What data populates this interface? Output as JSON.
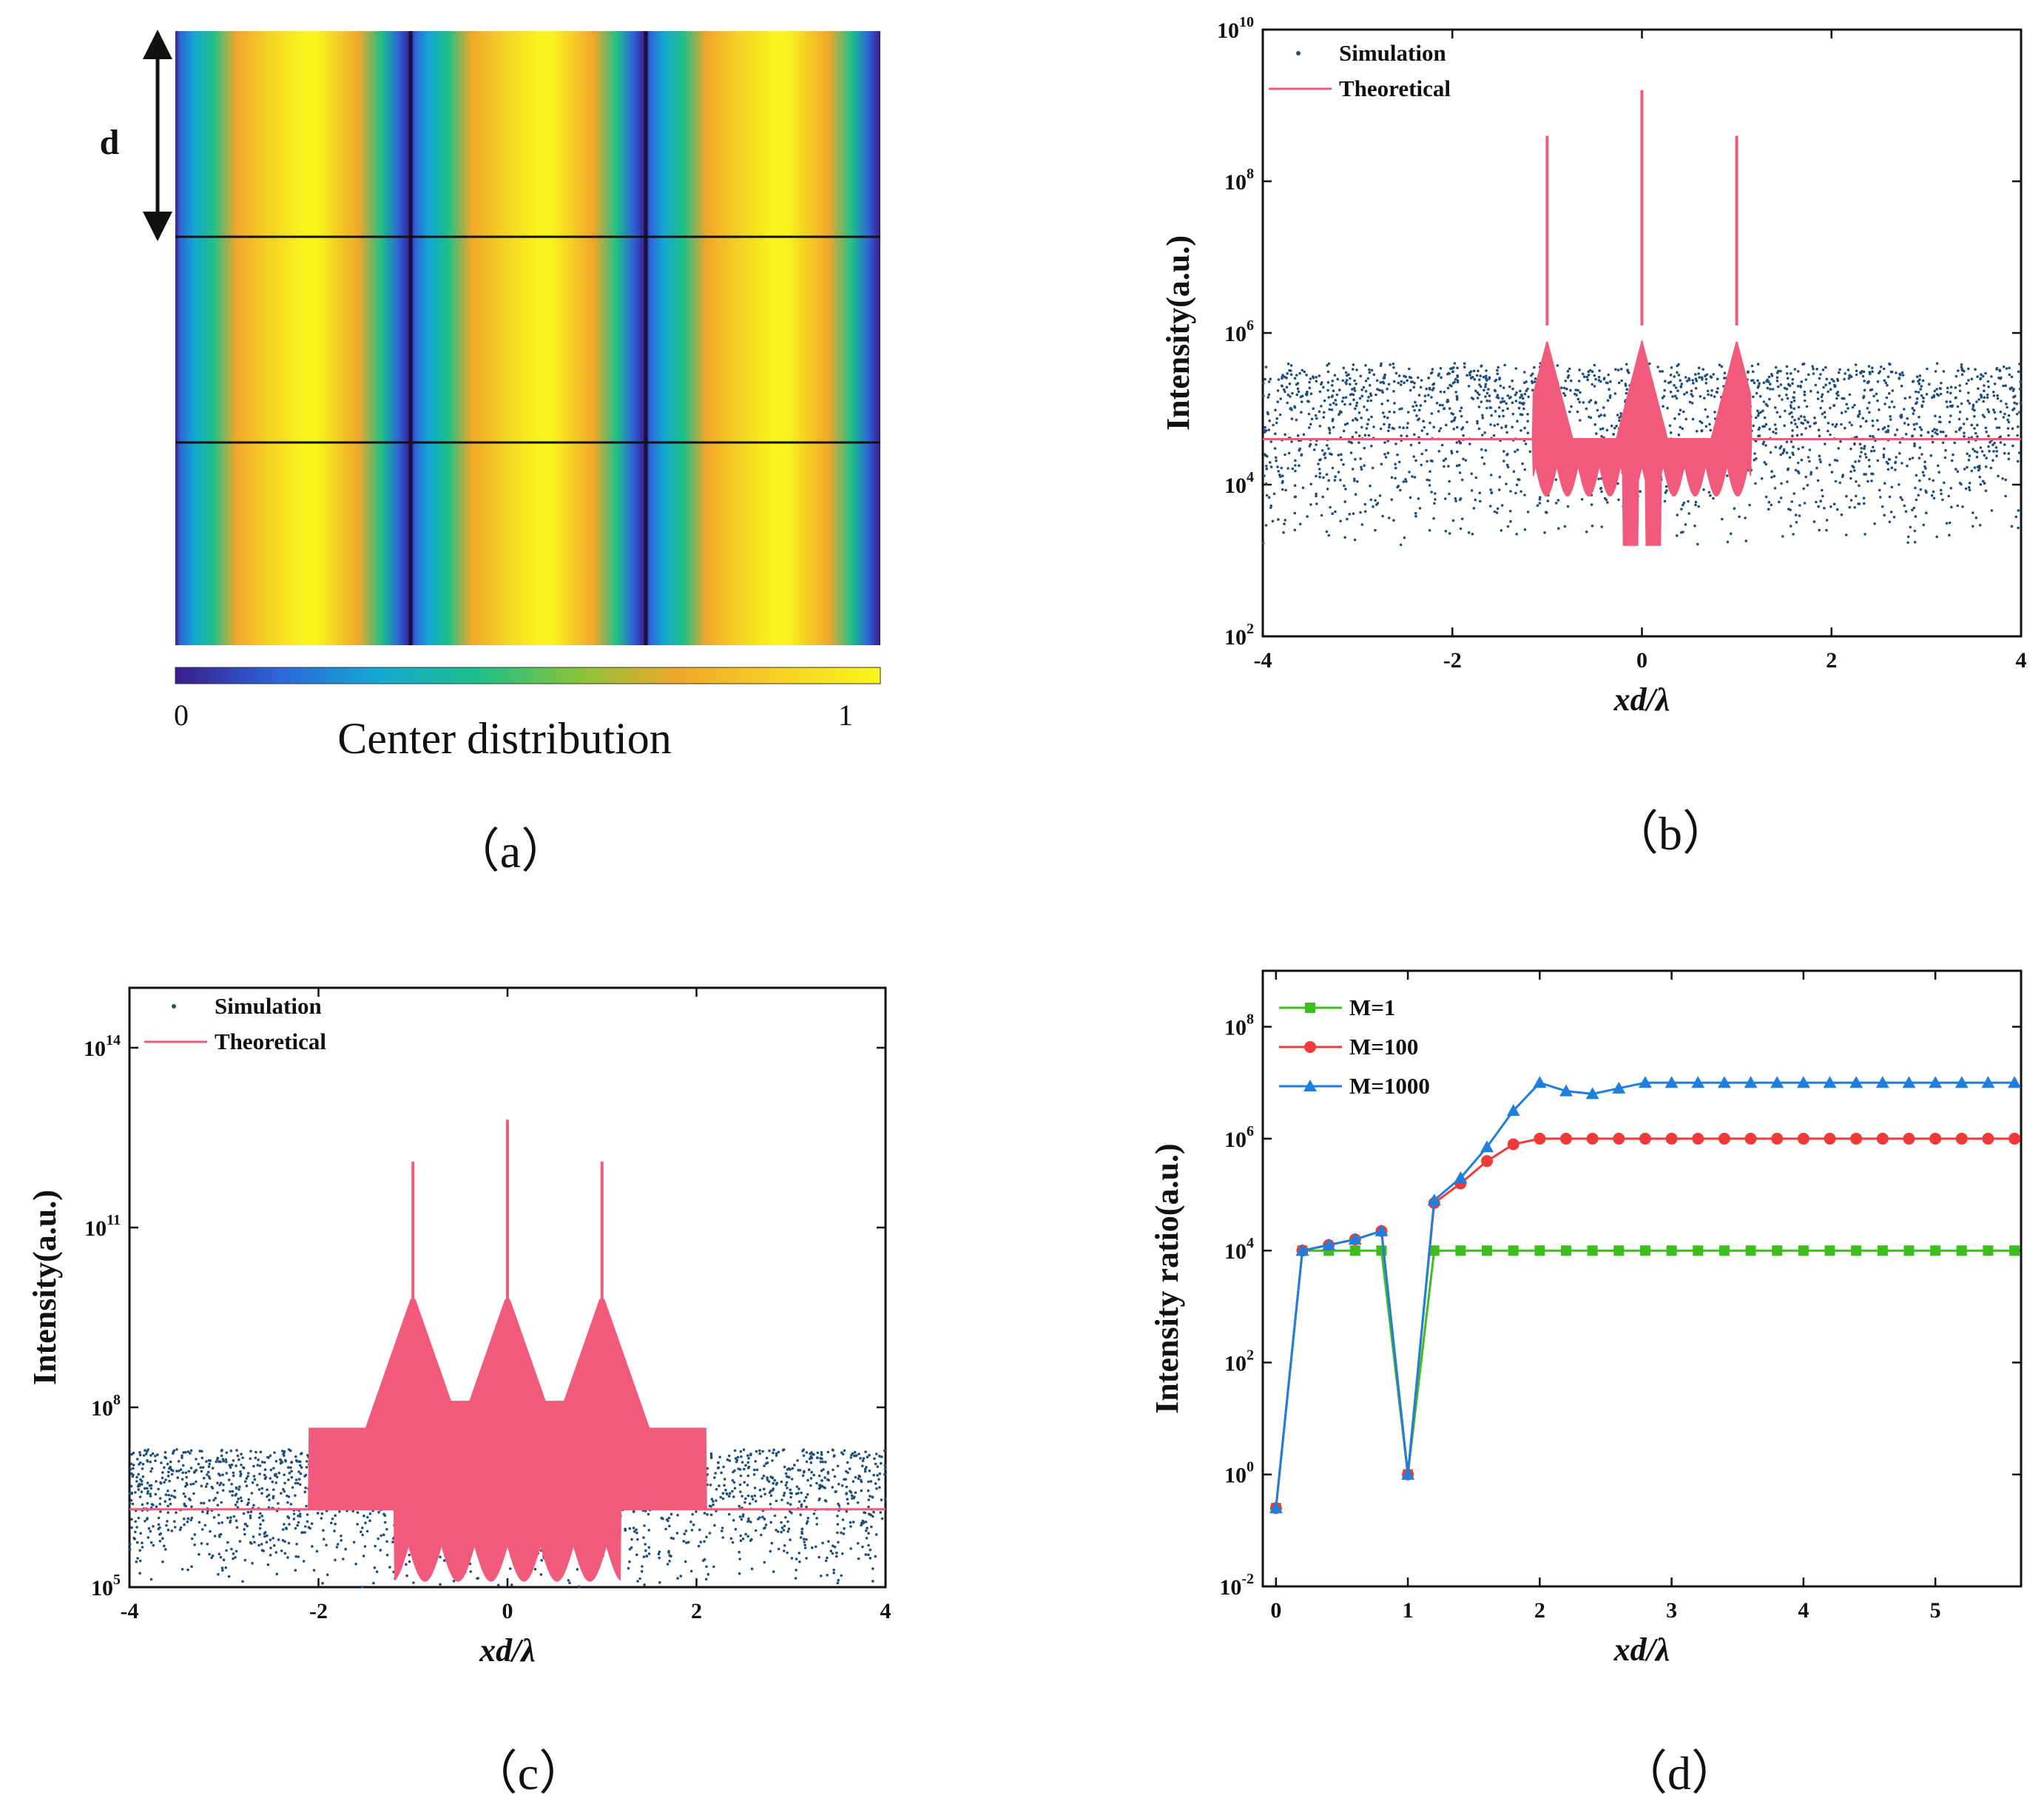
{
  "panels": {
    "a": {
      "caption": "（a）",
      "colorbar_label": "Center distribution",
      "colorbar_min": "0",
      "colorbar_max": "1",
      "period_label": "d",
      "colormap": [
        "#3b1c8c",
        "#2d64d8",
        "#14a8d4",
        "#1cbf8a",
        "#86c33a",
        "#f0a72a",
        "#f6d223",
        "#f9f51c"
      ]
    },
    "b": {
      "caption": "（b）"
    },
    "c": {
      "caption": "（c）"
    },
    "d": {
      "caption": "（d）"
    }
  },
  "chart_data": [
    {
      "id": "b",
      "type": "scatter",
      "xlabel": "xd/λ",
      "ylabel": "Intensity(a.u.)",
      "xlim": [
        -4,
        4
      ],
      "ylim_log10": [
        2,
        10
      ],
      "xticks": [
        -4,
        -2,
        0,
        2,
        4
      ],
      "yticks_exp": [
        2,
        4,
        6,
        8,
        10
      ],
      "legend": [
        "Simulation",
        "Theoretical"
      ],
      "peaks": [
        {
          "x": -1,
          "log10_intensity": 8.6
        },
        {
          "x": 0,
          "log10_intensity": 9.2
        },
        {
          "x": 1,
          "log10_intensity": 8.6
        }
      ],
      "baseline_log10": 4.6,
      "noise_log10_range": [
        3.2,
        5.5
      ],
      "colors": {
        "simulation": "#1f4e79",
        "theoretical": "#f25a7c"
      }
    },
    {
      "id": "c",
      "type": "scatter",
      "xlabel": "xd/λ",
      "ylabel": "Intensity(a.u.)",
      "xlim": [
        -4,
        4
      ],
      "ylim_log10": [
        5,
        15
      ],
      "xticks": [
        -4,
        -2,
        0,
        2,
        4
      ],
      "yticks_exp": [
        5,
        8,
        11,
        14
      ],
      "legend": [
        "Simulation",
        "Theoretical"
      ],
      "peaks": [
        {
          "x": -1,
          "log10_intensity": 12.1
        },
        {
          "x": 0,
          "log10_intensity": 12.8
        },
        {
          "x": 1,
          "log10_intensity": 12.1
        }
      ],
      "baseline_log10": 6.3,
      "noise_log10_range": [
        5.0,
        7.3
      ],
      "colors": {
        "simulation": "#1f4e79",
        "theoretical": "#f25a7c"
      }
    },
    {
      "id": "d",
      "type": "line",
      "xlabel": "xd/λ",
      "ylabel": "Intensity ratio(a.u.)",
      "xlim": [
        -0.1,
        5.65
      ],
      "ylim_log10": [
        -2,
        9
      ],
      "xticks": [
        0,
        1,
        2,
        3,
        4,
        5
      ],
      "yticks_exp": [
        -2,
        0,
        2,
        4,
        6,
        8
      ],
      "x": [
        0,
        0.2,
        0.4,
        0.6,
        0.8,
        1.0,
        1.2,
        1.4,
        1.6,
        1.8,
        2.0,
        2.2,
        2.4,
        2.6,
        2.8,
        3.0,
        3.2,
        3.4,
        3.6,
        3.8,
        4.0,
        4.2,
        4.4,
        4.6,
        4.8,
        5.0,
        5.2,
        5.4,
        5.6
      ],
      "series": [
        {
          "name": "M=1",
          "color": "#3cbf1c",
          "marker": "square",
          "log10_values": [
            -0.6,
            4.0,
            4.0,
            4.0,
            4.0,
            0.0,
            4.0,
            4.0,
            4.0,
            4.0,
            4.0,
            4.0,
            4.0,
            4.0,
            4.0,
            4.0,
            4.0,
            4.0,
            4.0,
            4.0,
            4.0,
            4.0,
            4.0,
            4.0,
            4.0,
            4.0,
            4.0,
            4.0,
            4.0
          ]
        },
        {
          "name": "M=100",
          "color": "#f03a3a",
          "marker": "circle",
          "log10_values": [
            -0.6,
            4.0,
            4.1,
            4.2,
            4.35,
            0.0,
            4.85,
            5.2,
            5.6,
            5.9,
            6.0,
            6.0,
            6.0,
            6.0,
            6.0,
            6.0,
            6.0,
            6.0,
            6.0,
            6.0,
            6.0,
            6.0,
            6.0,
            6.0,
            6.0,
            6.0,
            6.0,
            6.0,
            6.0
          ]
        },
        {
          "name": "M=1000",
          "color": "#1e7fdc",
          "marker": "triangle",
          "log10_values": [
            -0.6,
            4.0,
            4.1,
            4.2,
            4.35,
            0.0,
            4.9,
            5.3,
            5.85,
            6.5,
            7.0,
            6.85,
            6.8,
            6.9,
            7.0,
            7.0,
            7.0,
            7.0,
            7.0,
            7.0,
            7.0,
            7.0,
            7.0,
            7.0,
            7.0,
            7.0,
            7.0,
            7.0,
            7.0
          ]
        }
      ]
    }
  ]
}
